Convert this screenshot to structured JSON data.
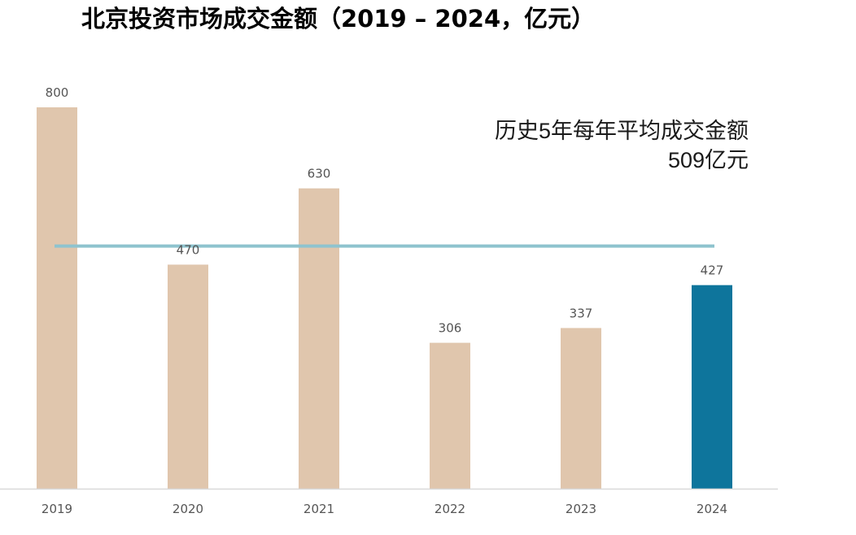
{
  "chart_data": {
    "type": "bar",
    "title": "北京投资市场成交金额（2019 – 2024，亿元）",
    "categories": [
      "2019",
      "2020",
      "2021",
      "2022",
      "2023",
      "2024"
    ],
    "values": [
      800,
      470,
      630,
      306,
      337,
      427
    ],
    "data_labels": [
      "800",
      "470",
      "630",
      "306",
      "337",
      "427"
    ],
    "ylim": [
      0,
      800
    ],
    "grid": false,
    "colors": {
      "default_bar": "#E0C6AD",
      "highlight_bar": "#0E759C",
      "average_line": "#8EC3CE",
      "axis_line": "#D9D9D9"
    },
    "highlight_category": "2024",
    "average": {
      "value": 509,
      "label_line1": "历史5年每年平均成交金额",
      "label_line2": "509亿元"
    }
  }
}
